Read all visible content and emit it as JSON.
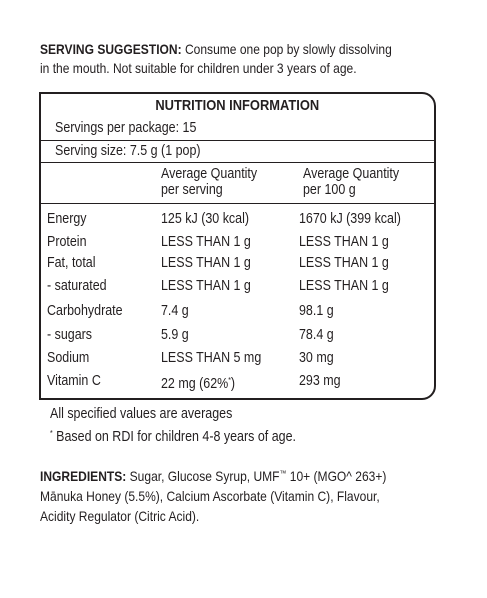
{
  "serving_suggestion": {
    "label": "SERVING SUGGESTION:",
    "line1": "Consume one pop by slowly dissolving",
    "line2": "in the mouth. Not suitable for children under 3 years of age."
  },
  "nutrition": {
    "title": "NUTRITION INFORMATION",
    "servings_per_package": "Servings per package: 15",
    "serving_size": "Serving size: 7.5 g (1 pop)",
    "col1_line1": "Average Quantity",
    "col1_line2": "per serving",
    "col2_line1": "Average Quantity",
    "col2_line2": "per 100 g",
    "rows": [
      {
        "name": "Energy",
        "per_serving": "125 kJ (30 kcal)",
        "per_100g": "1670 kJ (399 kcal)"
      },
      {
        "name": "Protein",
        "per_serving": "LESS THAN 1 g",
        "per_100g": "LESS THAN 1 g"
      },
      {
        "name": "Fat, total",
        "per_serving": "LESS THAN 1 g",
        "per_100g": "LESS THAN 1 g"
      },
      {
        "name": "- saturated",
        "per_serving": "LESS THAN 1 g",
        "per_100g": "LESS THAN 1 g"
      },
      {
        "name": "Carbohydrate",
        "per_serving": "7.4 g",
        "per_100g": "98.1 g"
      },
      {
        "name": "- sugars",
        "per_serving": "5.9 g",
        "per_100g": "78.4 g"
      },
      {
        "name": "Sodium",
        "per_serving": "LESS THAN 5 mg",
        "per_100g": "30 mg"
      },
      {
        "name": "Vitamin C",
        "per_serving": "22 mg (62%",
        "per_serving_mark": "*",
        "per_serving_close": ")",
        "per_100g": "293 mg"
      }
    ]
  },
  "footnotes": {
    "line1": "All specified values are averages",
    "mark": "*",
    "line2": "Based on RDI for children 4-8 years of age."
  },
  "ingredients": {
    "label": "INGREDIENTS:",
    "part1": "Sugar, Glucose Syrup, UMF",
    "tm": "™",
    "part2": "10+ (MGO^ 263+)",
    "line2": "Mānuka Honey (5.5%), Calcium Ascorbate (Vitamin C), Flavour,",
    "line3": "Acidity Regulator (Citric Acid)."
  }
}
